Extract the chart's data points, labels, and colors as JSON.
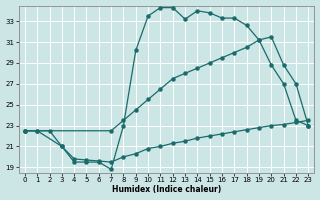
{
  "xlabel": "Humidex (Indice chaleur)",
  "background_color": "#cce5e5",
  "grid_color": "#ffffff",
  "line_color": "#1a6b6b",
  "xlim": [
    -0.5,
    23.5
  ],
  "ylim": [
    18.5,
    34.5
  ],
  "xticks": [
    0,
    1,
    2,
    3,
    4,
    5,
    6,
    7,
    8,
    9,
    10,
    11,
    12,
    13,
    14,
    15,
    16,
    17,
    18,
    19,
    20,
    21,
    22,
    23
  ],
  "yticks": [
    19,
    21,
    23,
    25,
    27,
    29,
    31,
    33
  ],
  "curve1_x": [
    0,
    1,
    3,
    4,
    5,
    6,
    7,
    8,
    9,
    10,
    11,
    12,
    13,
    14,
    15,
    16,
    17,
    18,
    19,
    20,
    21,
    22,
    23
  ],
  "curve1_y": [
    22.5,
    22.5,
    21.0,
    19.5,
    19.5,
    19.5,
    18.8,
    23.0,
    30.2,
    33.5,
    34.3,
    34.3,
    33.2,
    34.0,
    33.8,
    33.3,
    33.3,
    32.6,
    31.2,
    28.8,
    27.0,
    23.5,
    23.0
  ],
  "curve2_x": [
    0,
    7,
    8,
    9,
    10,
    11,
    12,
    13,
    14,
    15,
    16,
    17,
    18,
    19,
    20,
    21,
    22,
    23
  ],
  "curve2_y": [
    22.5,
    22.5,
    23.5,
    24.5,
    25.5,
    26.5,
    27.5,
    28.0,
    28.5,
    29.0,
    29.5,
    30.0,
    30.5,
    31.2,
    31.5,
    28.8,
    27.0,
    23.0
  ],
  "curve3_x": [
    0,
    1,
    2,
    3,
    4,
    5,
    6,
    7,
    8,
    9,
    10,
    11,
    12,
    13,
    14,
    15,
    16,
    17,
    18,
    19,
    20,
    21,
    22,
    23
  ],
  "curve3_y": [
    22.5,
    22.5,
    22.5,
    21.0,
    19.8,
    19.7,
    19.6,
    19.5,
    20.0,
    20.3,
    20.8,
    21.0,
    21.3,
    21.5,
    21.8,
    22.0,
    22.2,
    22.4,
    22.6,
    22.8,
    23.0,
    23.1,
    23.3,
    23.5
  ]
}
